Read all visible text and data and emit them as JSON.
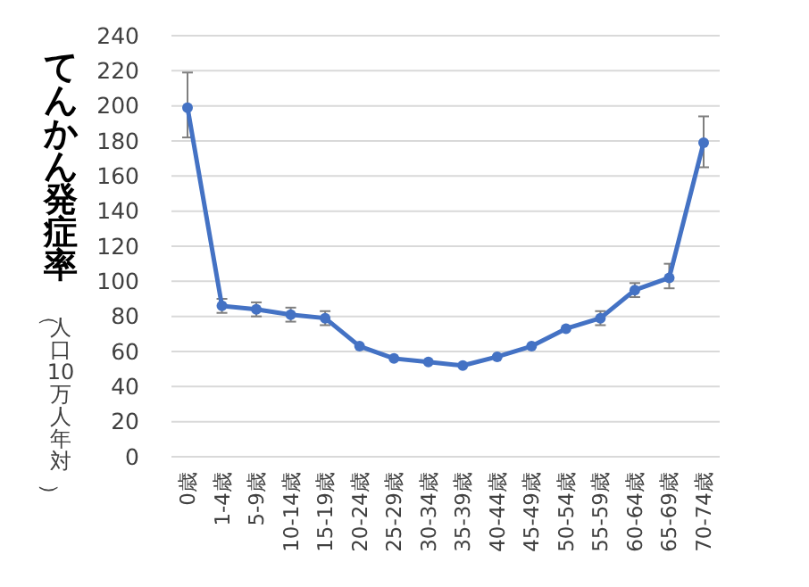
{
  "chart_data": {
    "type": "line",
    "ylabel": "てんかん発症率",
    "annotations": [
      "（人口10万人年対）"
    ],
    "categories": [
      "0歳",
      "1-4歳",
      "5-9歳",
      "10-14歳",
      "15-19歳",
      "20-24歳",
      "25-29歳",
      "30-34歳",
      "35-39歳",
      "40-44歳",
      "45-49歳",
      "50-54歳",
      "55-59歳",
      "60-64歳",
      "65-69歳",
      "70-74歳"
    ],
    "series": [
      {
        "color": "#4472c4",
        "values": [
          199,
          86,
          84,
          81,
          79,
          63,
          56,
          54,
          52,
          57,
          63,
          73,
          79,
          95,
          102,
          179
        ],
        "errors": [
          [
            182,
            219
          ],
          [
            82,
            90
          ],
          [
            80,
            88
          ],
          [
            77,
            85
          ],
          [
            75,
            83
          ],
          null,
          null,
          null,
          null,
          null,
          null,
          null,
          [
            75,
            83
          ],
          [
            91,
            99
          ],
          [
            96,
            110
          ],
          [
            165,
            194
          ]
        ]
      }
    ],
    "ylim": [
      0,
      240
    ],
    "yticks": [
      0,
      20,
      40,
      60,
      80,
      100,
      120,
      140,
      160,
      180,
      200,
      220,
      240
    ],
    "grid": "y",
    "marker": "circle",
    "line_style": "solid"
  }
}
